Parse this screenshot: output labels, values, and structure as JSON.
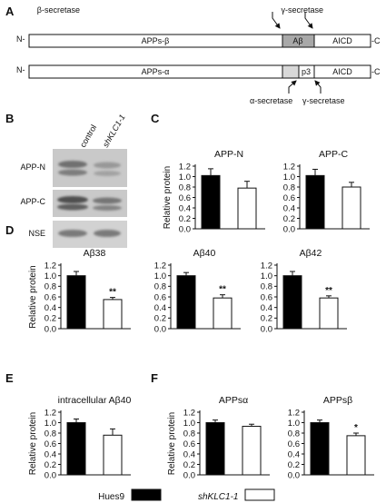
{
  "panel_letters": {
    "A": "A",
    "B": "B",
    "C": "C",
    "D": "D",
    "E": "E",
    "F": "F"
  },
  "diagram": {
    "row1": {
      "n_term": "N-",
      "c_term": "-C",
      "segments": {
        "apps": "APPs-β",
        "abeta": "Aβ",
        "aicd": "AICD"
      },
      "top_labels": {
        "beta": "β-secretase",
        "gamma": "γ-secretase"
      }
    },
    "row2": {
      "n_term": "N-",
      "c_term": "-C",
      "segments": {
        "apps": "APPs-α",
        "p3": "p3",
        "aicd": "AICD"
      },
      "bottom_labels": {
        "alpha": "α-secretase",
        "gamma": "γ-secretase"
      }
    },
    "colors": {
      "abeta_fill": "#a8a8a8",
      "alpha_stub_fill": "#d8d8d8",
      "segment_fill": "#ffffff"
    }
  },
  "western": {
    "lanes": {
      "control": "control",
      "shKLC1": "shKLC1-1"
    },
    "rows": {
      "app_n": "APP-N",
      "app_c": "APP-C",
      "nse": "NSE"
    }
  },
  "y_label": "Relative protein",
  "legend": {
    "hues9": "Hues9",
    "shKLC1": "shKLC1-1"
  },
  "colors": {
    "hues9": "#000000",
    "shKLC1": "#ffffff"
  },
  "chart_data": [
    {
      "type": "bar",
      "panel": "C",
      "title": "APP-N",
      "ylabel": "Relative protein",
      "series": [
        {
          "name": "Hues9",
          "value": 1.02,
          "error": 0.13
        },
        {
          "name": "shKLC1-1",
          "value": 0.78,
          "error": 0.13
        }
      ],
      "ylim": [
        0,
        1.2
      ],
      "yticks": [
        "0.0",
        "0.2",
        "0.4",
        "0.6",
        "0.8",
        "1.0",
        "1.2"
      ],
      "annotation": ""
    },
    {
      "type": "bar",
      "panel": "C",
      "title": "APP-C",
      "ylabel": "",
      "series": [
        {
          "name": "Hues9",
          "value": 1.02,
          "error": 0.12
        },
        {
          "name": "shKLC1-1",
          "value": 0.8,
          "error": 0.09
        }
      ],
      "ylim": [
        0,
        1.2
      ],
      "yticks": [
        "0.0",
        "0.2",
        "0.4",
        "0.6",
        "0.8",
        "1.0",
        "1.2"
      ],
      "annotation": ""
    },
    {
      "type": "bar",
      "panel": "D",
      "title": "Aβ38",
      "ylabel": "Relative protein",
      "series": [
        {
          "name": "Hues9",
          "value": 1.0,
          "error": 0.08
        },
        {
          "name": "shKLC1-1",
          "value": 0.55,
          "error": 0.04
        }
      ],
      "ylim": [
        0,
        1.2
      ],
      "yticks": [
        "0.0",
        "0.2",
        "0.4",
        "0.6",
        "0.8",
        "1.0",
        "1.2"
      ],
      "annotation": "**"
    },
    {
      "type": "bar",
      "panel": "D",
      "title": "Aβ40",
      "ylabel": "",
      "series": [
        {
          "name": "Hues9",
          "value": 1.0,
          "error": 0.06
        },
        {
          "name": "shKLC1-1",
          "value": 0.58,
          "error": 0.06
        }
      ],
      "ylim": [
        0,
        1.2
      ],
      "yticks": [
        "0.0",
        "0.2",
        "0.4",
        "0.6",
        "0.8",
        "1.0",
        "1.2"
      ],
      "annotation": "**"
    },
    {
      "type": "bar",
      "panel": "D",
      "title": "Aβ42",
      "ylabel": "",
      "series": [
        {
          "name": "Hues9",
          "value": 1.0,
          "error": 0.08
        },
        {
          "name": "shKLC1-1",
          "value": 0.58,
          "error": 0.04
        }
      ],
      "ylim": [
        0,
        1.2
      ],
      "yticks": [
        "0.0",
        "0.2",
        "0.4",
        "0.6",
        "0.8",
        "1.0",
        "1.2"
      ],
      "annotation": "**"
    },
    {
      "type": "bar",
      "panel": "E",
      "title": "intracellular Aβ40",
      "ylabel": "Relative protein",
      "series": [
        {
          "name": "Hues9",
          "value": 1.0,
          "error": 0.07
        },
        {
          "name": "shKLC1-1",
          "value": 0.76,
          "error": 0.12
        }
      ],
      "ylim": [
        0,
        1.2
      ],
      "yticks": [
        "0.0",
        "0.2",
        "0.4",
        "0.6",
        "0.8",
        "1.0",
        "1.2"
      ],
      "annotation": ""
    },
    {
      "type": "bar",
      "panel": "F",
      "title": "APPsα",
      "ylabel": "Relative protein",
      "series": [
        {
          "name": "Hues9",
          "value": 1.0,
          "error": 0.05
        },
        {
          "name": "shKLC1-1",
          "value": 0.93,
          "error": 0.04
        }
      ],
      "ylim": [
        0,
        1.2
      ],
      "yticks": [
        "0.0",
        "0.2",
        "0.4",
        "0.6",
        "0.8",
        "1.0",
        "1.2"
      ],
      "annotation": ""
    },
    {
      "type": "bar",
      "panel": "F",
      "title": "APPsβ",
      "ylabel": "",
      "series": [
        {
          "name": "Hues9",
          "value": 1.0,
          "error": 0.05
        },
        {
          "name": "shKLC1-1",
          "value": 0.75,
          "error": 0.05
        }
      ],
      "ylim": [
        0,
        1.2
      ],
      "yticks": [
        "0.0",
        "0.2",
        "0.4",
        "0.6",
        "0.8",
        "1.0",
        "1.2"
      ],
      "annotation": "*"
    }
  ]
}
